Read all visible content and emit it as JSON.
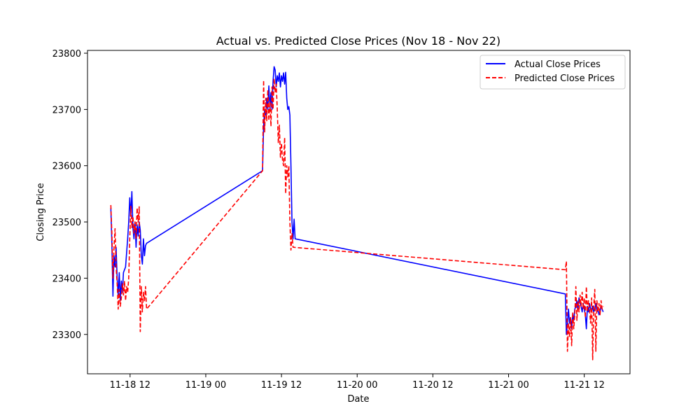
{
  "chart_data": {
    "type": "line",
    "title": "Actual vs. Predicted Close Prices (Nov 18 - Nov 22)",
    "xlabel": "Date",
    "ylabel": "Closing Price",
    "x_axis_type": "datetime",
    "xlim": [
      "2024-11-18 05:15",
      "2024-11-21 19:15"
    ],
    "ylim": [
      23230,
      23805
    ],
    "x_ticks": [
      {
        "value": "2024-11-18 12:00",
        "label": "11-18 12"
      },
      {
        "value": "2024-11-19 00:00",
        "label": "11-19 00"
      },
      {
        "value": "2024-11-19 12:00",
        "label": "11-19 12"
      },
      {
        "value": "2024-11-20 00:00",
        "label": "11-20 00"
      },
      {
        "value": "2024-11-20 12:00",
        "label": "11-20 12"
      },
      {
        "value": "2024-11-21 00:00",
        "label": "11-21 00"
      },
      {
        "value": "2024-11-21 12:00",
        "label": "11-21 12"
      }
    ],
    "y_ticks": [
      23300,
      23400,
      23500,
      23600,
      23700,
      23800
    ],
    "grid": false,
    "legend": "upper-right",
    "series": [
      {
        "name": "Actual Close Prices",
        "color": "#0000ff",
        "style": "solid",
        "points": [
          [
            "2024-11-18 08:57",
            23525
          ],
          [
            "2024-11-18 09:07",
            23460
          ],
          [
            "2024-11-18 09:17",
            23368
          ],
          [
            "2024-11-18 09:27",
            23440
          ],
          [
            "2024-11-18 09:37",
            23420
          ],
          [
            "2024-11-18 09:47",
            23455
          ],
          [
            "2024-11-18 09:57",
            23400
          ],
          [
            "2024-11-18 10:07",
            23370
          ],
          [
            "2024-11-18 10:17",
            23410
          ],
          [
            "2024-11-18 10:27",
            23360
          ],
          [
            "2024-11-18 10:37",
            23395
          ],
          [
            "2024-11-18 10:47",
            23375
          ],
          [
            "2024-11-18 10:57",
            23410
          ],
          [
            "2024-11-18 11:17",
            23420
          ],
          [
            "2024-11-18 11:37",
            23470
          ],
          [
            "2024-11-18 11:47",
            23500
          ],
          [
            "2024-11-18 11:57",
            23543
          ],
          [
            "2024-11-18 12:07",
            23510
          ],
          [
            "2024-11-18 12:17",
            23554
          ],
          [
            "2024-11-18 12:27",
            23490
          ],
          [
            "2024-11-18 12:37",
            23470
          ],
          [
            "2024-11-18 12:47",
            23500
          ],
          [
            "2024-11-18 12:57",
            23455
          ],
          [
            "2024-11-18 13:07",
            23495
          ],
          [
            "2024-11-18 13:17",
            23475
          ],
          [
            "2024-11-18 13:27",
            23500
          ],
          [
            "2024-11-18 13:37",
            23485
          ],
          [
            "2024-11-18 13:47",
            23440
          ],
          [
            "2024-11-18 13:57",
            23425
          ],
          [
            "2024-11-18 14:07",
            23470
          ],
          [
            "2024-11-18 14:17",
            23440
          ],
          [
            "2024-11-18 14:27",
            23458
          ],
          [
            "2024-11-18 14:37",
            23462
          ],
          [
            "2024-11-19 09:00",
            23591
          ],
          [
            "2024-11-19 09:10",
            23670
          ],
          [
            "2024-11-19 09:20",
            23700
          ],
          [
            "2024-11-19 09:30",
            23690
          ],
          [
            "2024-11-19 09:40",
            23720
          ],
          [
            "2024-11-19 09:50",
            23700
          ],
          [
            "2024-11-19 10:00",
            23742
          ],
          [
            "2024-11-19 10:10",
            23700
          ],
          [
            "2024-11-19 10:20",
            23730
          ],
          [
            "2024-11-19 10:30",
            23700
          ],
          [
            "2024-11-19 10:40",
            23750
          ],
          [
            "2024-11-19 10:50",
            23776
          ],
          [
            "2024-11-19 11:00",
            23770
          ],
          [
            "2024-11-19 11:10",
            23740
          ],
          [
            "2024-11-19 11:20",
            23760
          ],
          [
            "2024-11-19 11:30",
            23750
          ],
          [
            "2024-11-19 11:40",
            23765
          ],
          [
            "2024-11-19 11:50",
            23740
          ],
          [
            "2024-11-19 12:00",
            23760
          ],
          [
            "2024-11-19 12:10",
            23750
          ],
          [
            "2024-11-19 12:20",
            23765
          ],
          [
            "2024-11-19 12:30",
            23745
          ],
          [
            "2024-11-19 12:40",
            23766
          ],
          [
            "2024-11-19 12:50",
            23720
          ],
          [
            "2024-11-19 13:00",
            23700
          ],
          [
            "2024-11-19 13:10",
            23705
          ],
          [
            "2024-11-19 13:20",
            23690
          ],
          [
            "2024-11-19 13:30",
            23600
          ],
          [
            "2024-11-19 13:40",
            23500
          ],
          [
            "2024-11-19 13:50",
            23470
          ],
          [
            "2024-11-19 14:00",
            23505
          ],
          [
            "2024-11-19 14:10",
            23470
          ],
          [
            "2024-11-21 09:00",
            23372
          ],
          [
            "2024-11-21 09:10",
            23300
          ],
          [
            "2024-11-21 09:20",
            23320
          ],
          [
            "2024-11-21 09:30",
            23345
          ],
          [
            "2024-11-21 09:40",
            23320
          ],
          [
            "2024-11-21 09:50",
            23330
          ],
          [
            "2024-11-21 10:00",
            23310
          ],
          [
            "2024-11-21 10:10",
            23335
          ],
          [
            "2024-11-21 10:20",
            23325
          ],
          [
            "2024-11-21 10:30",
            23345
          ],
          [
            "2024-11-21 10:40",
            23350
          ],
          [
            "2024-11-21 10:50",
            23360
          ],
          [
            "2024-11-21 11:00",
            23345
          ],
          [
            "2024-11-21 11:10",
            23365
          ],
          [
            "2024-11-21 11:20",
            23355
          ],
          [
            "2024-11-21 11:30",
            23350
          ],
          [
            "2024-11-21 11:40",
            23340
          ],
          [
            "2024-11-21 11:50",
            23355
          ],
          [
            "2024-11-21 12:00",
            23345
          ],
          [
            "2024-11-21 12:10",
            23335
          ],
          [
            "2024-11-21 12:20",
            23310
          ],
          [
            "2024-11-21 12:30",
            23350
          ],
          [
            "2024-11-21 12:40",
            23340
          ],
          [
            "2024-11-21 12:50",
            23355
          ],
          [
            "2024-11-21 13:00",
            23345
          ],
          [
            "2024-11-21 13:10",
            23340
          ],
          [
            "2024-11-21 13:20",
            23350
          ],
          [
            "2024-11-21 13:30",
            23340
          ],
          [
            "2024-11-21 13:40",
            23345
          ],
          [
            "2024-11-21 13:50",
            23355
          ],
          [
            "2024-11-21 14:00",
            23340
          ],
          [
            "2024-11-21 14:10",
            23345
          ],
          [
            "2024-11-21 14:20",
            23335
          ],
          [
            "2024-11-21 14:30",
            23340
          ],
          [
            "2024-11-21 14:40",
            23350
          ],
          [
            "2024-11-21 14:50",
            23345
          ],
          [
            "2024-11-21 15:00",
            23340
          ]
        ]
      },
      {
        "name": "Predicted Close Prices",
        "color": "#ff0000",
        "style": "dashed",
        "points": [
          [
            "2024-11-18 08:57",
            23530
          ],
          [
            "2024-11-18 09:07",
            23480
          ],
          [
            "2024-11-18 09:17",
            23400
          ],
          [
            "2024-11-18 09:27",
            23455
          ],
          [
            "2024-11-18 09:37",
            23488
          ],
          [
            "2024-11-18 09:47",
            23420
          ],
          [
            "2024-11-18 09:57",
            23390
          ],
          [
            "2024-11-18 10:07",
            23345
          ],
          [
            "2024-11-18 10:17",
            23380
          ],
          [
            "2024-11-18 10:27",
            23350
          ],
          [
            "2024-11-18 10:37",
            23365
          ],
          [
            "2024-11-18 10:47",
            23390
          ],
          [
            "2024-11-18 10:57",
            23370
          ],
          [
            "2024-11-18 11:07",
            23395
          ],
          [
            "2024-11-18 11:17",
            23360
          ],
          [
            "2024-11-18 11:27",
            23385
          ],
          [
            "2024-11-18 11:37",
            23375
          ],
          [
            "2024-11-18 11:47",
            23400
          ],
          [
            "2024-11-18 11:57",
            23470
          ],
          [
            "2024-11-18 12:07",
            23528
          ],
          [
            "2024-11-18 12:17",
            23490
          ],
          [
            "2024-11-18 12:27",
            23510
          ],
          [
            "2024-11-18 12:37",
            23480
          ],
          [
            "2024-11-18 12:47",
            23500
          ],
          [
            "2024-11-18 12:57",
            23470
          ],
          [
            "2024-11-18 13:07",
            23525
          ],
          [
            "2024-11-18 13:17",
            23500
          ],
          [
            "2024-11-18 13:27",
            23527
          ],
          [
            "2024-11-18 13:37",
            23305
          ],
          [
            "2024-11-18 13:47",
            23385
          ],
          [
            "2024-11-18 13:57",
            23340
          ],
          [
            "2024-11-18 14:07",
            23375
          ],
          [
            "2024-11-18 14:17",
            23360
          ],
          [
            "2024-11-18 14:27",
            23385
          ],
          [
            "2024-11-18 14:37",
            23345
          ],
          [
            "2024-11-19 09:00",
            23591
          ],
          [
            "2024-11-19 09:10",
            23752
          ],
          [
            "2024-11-19 09:20",
            23660
          ],
          [
            "2024-11-19 09:30",
            23720
          ],
          [
            "2024-11-19 09:40",
            23680
          ],
          [
            "2024-11-19 09:50",
            23735
          ],
          [
            "2024-11-19 10:00",
            23680
          ],
          [
            "2024-11-19 10:10",
            23715
          ],
          [
            "2024-11-19 10:20",
            23670
          ],
          [
            "2024-11-19 10:30",
            23740
          ],
          [
            "2024-11-19 10:40",
            23700
          ],
          [
            "2024-11-19 10:50",
            23755
          ],
          [
            "2024-11-19 11:00",
            23730
          ],
          [
            "2024-11-19 11:10",
            23745
          ],
          [
            "2024-11-19 11:20",
            23700
          ],
          [
            "2024-11-19 11:30",
            23640
          ],
          [
            "2024-11-19 11:40",
            23672
          ],
          [
            "2024-11-19 11:50",
            23615
          ],
          [
            "2024-11-19 12:00",
            23640
          ],
          [
            "2024-11-19 12:10",
            23610
          ],
          [
            "2024-11-19 12:20",
            23600
          ],
          [
            "2024-11-19 12:30",
            23650
          ],
          [
            "2024-11-19 12:40",
            23550
          ],
          [
            "2024-11-19 12:50",
            23600
          ],
          [
            "2024-11-19 13:00",
            23580
          ],
          [
            "2024-11-19 13:10",
            23600
          ],
          [
            "2024-11-19 13:20",
            23500
          ],
          [
            "2024-11-19 13:30",
            23450
          ],
          [
            "2024-11-19 13:40",
            23480
          ],
          [
            "2024-11-19 13:50",
            23455
          ],
          [
            "2024-11-21 09:00",
            23415
          ],
          [
            "2024-11-21 09:10",
            23430
          ],
          [
            "2024-11-21 09:20",
            23270
          ],
          [
            "2024-11-21 09:30",
            23320
          ],
          [
            "2024-11-21 09:40",
            23295
          ],
          [
            "2024-11-21 09:50",
            23330
          ],
          [
            "2024-11-21 10:00",
            23280
          ],
          [
            "2024-11-21 10:10",
            23340
          ],
          [
            "2024-11-21 10:20",
            23310
          ],
          [
            "2024-11-21 10:30",
            23335
          ],
          [
            "2024-11-21 10:40",
            23385
          ],
          [
            "2024-11-21 10:50",
            23325
          ],
          [
            "2024-11-21 11:00",
            23360
          ],
          [
            "2024-11-21 11:10",
            23340
          ],
          [
            "2024-11-21 11:20",
            23370
          ],
          [
            "2024-11-21 11:30",
            23350
          ],
          [
            "2024-11-21 11:40",
            23375
          ],
          [
            "2024-11-21 11:50",
            23345
          ],
          [
            "2024-11-21 12:00",
            23365
          ],
          [
            "2024-11-21 12:10",
            23330
          ],
          [
            "2024-11-21 12:20",
            23385
          ],
          [
            "2024-11-21 12:30",
            23340
          ],
          [
            "2024-11-21 12:40",
            23360
          ],
          [
            "2024-11-21 12:50",
            23345
          ],
          [
            "2024-11-21 13:00",
            23320
          ],
          [
            "2024-11-21 13:10",
            23365
          ],
          [
            "2024-11-21 13:20",
            23255
          ],
          [
            "2024-11-21 13:30",
            23350
          ],
          [
            "2024-11-21 13:40",
            23380
          ],
          [
            "2024-11-21 13:50",
            23270
          ],
          [
            "2024-11-21 14:00",
            23360
          ],
          [
            "2024-11-21 14:10",
            23340
          ],
          [
            "2024-11-21 14:20",
            23355
          ],
          [
            "2024-11-21 14:30",
            23335
          ],
          [
            "2024-11-21 14:40",
            23360
          ],
          [
            "2024-11-21 14:50",
            23345
          ],
          [
            "2024-11-21 15:00",
            23350
          ]
        ]
      }
    ]
  }
}
